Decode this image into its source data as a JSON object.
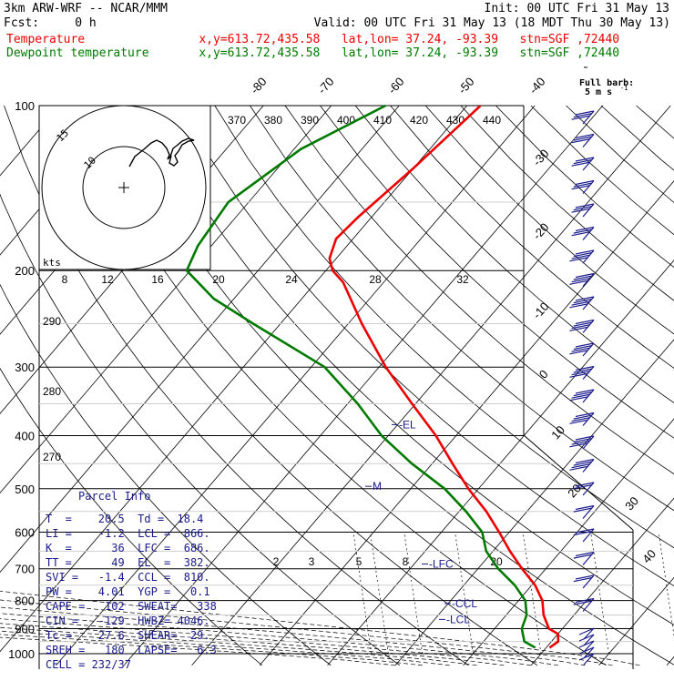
{
  "header": {
    "model": "3km ARW-WRF -- NCAR/MMM",
    "init": "Init: 00 UTC Fri 31 May 13",
    "fcst": "Fcst:     0 h",
    "valid": "Valid: 00 UTC Fri 31 May 13 (18 MDT Thu 30 May 13)",
    "temperature_line": "Temperature                x,y=613.72,435.58   lat,lon= 37.24, -93.39   stn=SGF ,72440",
    "dewpoint_line": "Dewpoint temperature       x,y=613.72,435.58   lat,lon= 37.24, -93.39   stn=SGF ,72440"
  },
  "wind_key": {
    "title": "Full barb:",
    "units": "5 m s",
    "exp": "-1"
  },
  "parcel_info": {
    "title": "Parcel Info",
    "rows": [
      "T  =    20.5  Td =  18.4",
      "LI =    -1.2  LCL =  866.",
      "K  =      36  LFC =  686.",
      "TT =      49  EL  =  382.",
      "SVI =   -1.4  CCL =  810.",
      "PW =    4.01  YGP =   0.1",
      "CAPE =   102  SWEAT=   338",
      "CIN =   -129  HWBZ= 4046.",
      "Tc =    27.6  SHEAR=  29.",
      "SREH =   180  LAPSE=   6.3",
      "CELL = 232/37"
    ]
  },
  "hodograph": {
    "rings": [
      "15",
      "10"
    ],
    "units": "kts"
  },
  "chart_data": {
    "type": "skew-t log-p",
    "pressure_labels": [
      "100",
      "200",
      "300",
      "400",
      "500",
      "600",
      "700",
      "800",
      "900",
      "1000"
    ],
    "isotherm_labels": [
      "-80",
      "-70",
      "-60",
      "-50",
      "-40",
      "-30",
      "-20",
      "-10",
      "0",
      "10",
      "20",
      "30",
      "40"
    ],
    "isentrope_labels": [
      "370",
      "380",
      "390",
      "400",
      "410",
      "420",
      "430",
      "440"
    ],
    "dry_adiabat_labels_left": [
      "290",
      "280",
      "270"
    ],
    "mixing_ratio_top_labels": [
      "8",
      "12",
      "16",
      "20",
      "24",
      "28",
      "32"
    ],
    "mixing_ratio_bottom_labels": [
      "2",
      "3",
      "5",
      "8",
      "20"
    ],
    "levels": [
      {
        "label": "-EL",
        "p": 382
      },
      {
        "label": "M",
        "p": 495
      },
      {
        "label": "-LFC",
        "p": 686
      },
      {
        "label": "-CCL",
        "p": 810
      },
      {
        "label": "-LCL",
        "p": 866
      }
    ],
    "series": [
      {
        "name": "Temperature",
        "color": "#ee0000",
        "points": [
          [
            100,
            -58
          ],
          [
            130,
            -60
          ],
          [
            160,
            -62
          ],
          [
            175,
            -62.5
          ],
          [
            190,
            -61
          ],
          [
            200,
            -59
          ],
          [
            210,
            -56
          ],
          [
            250,
            -48
          ],
          [
            300,
            -39
          ],
          [
            350,
            -30.5
          ],
          [
            400,
            -23
          ],
          [
            450,
            -17
          ],
          [
            500,
            -11.5
          ],
          [
            550,
            -6
          ],
          [
            600,
            -1.5
          ],
          [
            650,
            2.5
          ],
          [
            700,
            6.5
          ],
          [
            750,
            10.5
          ],
          [
            800,
            13.5
          ],
          [
            850,
            15.5
          ],
          [
            900,
            18
          ],
          [
            920,
            20
          ],
          [
            950,
            21
          ],
          [
            975,
            20.5
          ]
        ]
      },
      {
        "name": "Dewpoint temperature",
        "color": "#007a00",
        "points": [
          [
            100,
            -72
          ],
          [
            120,
            -79
          ],
          [
            150,
            -83
          ],
          [
            180,
            -82
          ],
          [
            200,
            -80.5
          ],
          [
            225,
            -73
          ],
          [
            250,
            -64
          ],
          [
            300,
            -48
          ],
          [
            350,
            -38.5
          ],
          [
            400,
            -31
          ],
          [
            450,
            -23
          ],
          [
            500,
            -15
          ],
          [
            550,
            -9
          ],
          [
            600,
            -4
          ],
          [
            650,
            -1
          ],
          [
            700,
            3
          ],
          [
            750,
            7.5
          ],
          [
            800,
            11
          ],
          [
            850,
            13
          ],
          [
            900,
            14
          ],
          [
            950,
            16
          ],
          [
            975,
            18.4
          ]
        ]
      }
    ],
    "wind_barbs": "present"
  }
}
